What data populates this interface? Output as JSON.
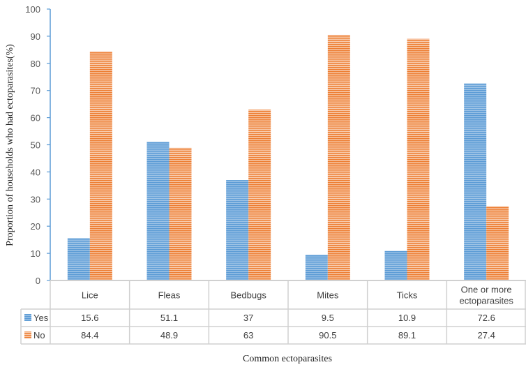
{
  "chart_data": {
    "type": "bar",
    "categories": [
      "Lice",
      "Fleas",
      "Bedbugs",
      "Mites",
      "Ticks",
      "One or more ectoparasites"
    ],
    "category_lines": [
      [
        "Lice"
      ],
      [
        "Fleas"
      ],
      [
        "Bedbugs"
      ],
      [
        "Mites"
      ],
      [
        "Ticks"
      ],
      [
        "One or more",
        "ectoparasites"
      ]
    ],
    "series": [
      {
        "name": "Yes",
        "values": [
          15.6,
          51.1,
          37,
          9.5,
          10.9,
          72.6
        ],
        "color": "#5B9BD5"
      },
      {
        "name": "No",
        "values": [
          84.4,
          48.9,
          63,
          90.5,
          89.1,
          27.4
        ],
        "color": "#ED7D31"
      }
    ],
    "xlabel": "Common  ectoparasites",
    "ylabel": "Proportion of households who had ectoparasites(%)",
    "ylim": [
      0,
      100
    ],
    "yticks": [
      0,
      10,
      20,
      30,
      40,
      50,
      60,
      70,
      80,
      90,
      100
    ],
    "grid": false,
    "legend": "data table",
    "bar_fill": "horizontal stripes"
  }
}
